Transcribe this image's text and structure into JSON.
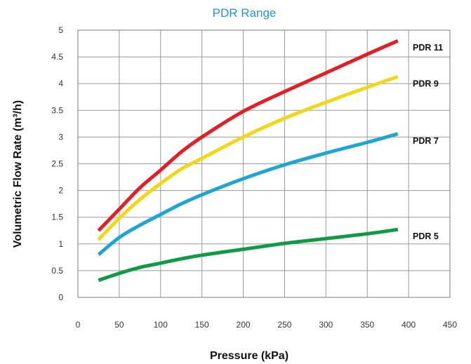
{
  "chart_data": {
    "type": "line",
    "title": "PDR Range",
    "xlabel": "Pressure (kPa)",
    "ylabel": "Volumetric Flow Rate (m³/h)",
    "xlim": [
      0,
      450
    ],
    "ylim": [
      0,
      5
    ],
    "x_ticks": [
      "0",
      "50",
      "100",
      "150",
      "200",
      "250",
      "300",
      "350",
      "400",
      "450"
    ],
    "y_ticks": [
      "0",
      "0.5",
      "1",
      "1.5",
      "2",
      "2.5",
      "3",
      "3.5",
      "4",
      "4.5",
      "5"
    ],
    "grid": true,
    "series": [
      {
        "name": "PDR 11",
        "color": "#e31e24",
        "x": [
          25,
          50,
          75,
          100,
          125,
          150,
          200,
          250,
          300,
          350,
          387
        ],
        "y": [
          1.25,
          1.65,
          2.05,
          2.38,
          2.72,
          3.0,
          3.48,
          3.85,
          4.2,
          4.55,
          4.8
        ]
      },
      {
        "name": "PDR 9",
        "color": "#f0d818",
        "x": [
          25,
          50,
          75,
          100,
          125,
          150,
          200,
          250,
          300,
          350,
          387
        ],
        "y": [
          1.08,
          1.48,
          1.83,
          2.13,
          2.4,
          2.6,
          3.0,
          3.35,
          3.65,
          3.93,
          4.13
        ]
      },
      {
        "name": "PDR 7",
        "color": "#1ea6d2",
        "x": [
          25,
          50,
          75,
          100,
          125,
          150,
          200,
          250,
          300,
          350,
          387
        ],
        "y": [
          0.8,
          1.12,
          1.35,
          1.55,
          1.75,
          1.92,
          2.22,
          2.48,
          2.7,
          2.9,
          3.06
        ]
      },
      {
        "name": "PDR 5",
        "color": "#0f9a46",
        "x": [
          25,
          50,
          75,
          100,
          125,
          150,
          200,
          250,
          300,
          350,
          387
        ],
        "y": [
          0.32,
          0.45,
          0.56,
          0.64,
          0.72,
          0.79,
          0.9,
          1.01,
          1.1,
          1.19,
          1.27
        ]
      }
    ]
  }
}
